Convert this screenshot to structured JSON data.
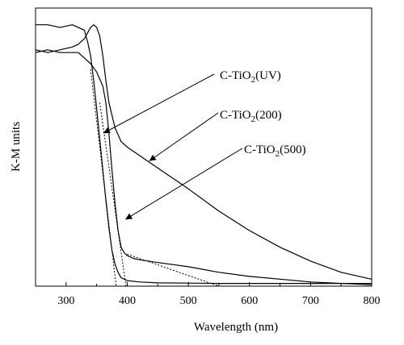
{
  "chart_data": {
    "type": "line",
    "xlabel": "Wavelength (nm)",
    "ylabel": "K-M units",
    "xlim": [
      250,
      800
    ],
    "ylim": [
      0,
      1
    ],
    "x_ticks": [
      300,
      400,
      500,
      600,
      700,
      800
    ],
    "x_tick_labels": [
      "300",
      "400",
      "500",
      "600",
      "700",
      "800"
    ],
    "y_ticks": [],
    "grid": false,
    "legend": "none",
    "series": [
      {
        "x": [
          250,
          270,
          290,
          310,
          320,
          330,
          340,
          345,
          350,
          355,
          360,
          365,
          370,
          380,
          390,
          400,
          420,
          440,
          460,
          480,
          500,
          550,
          600,
          650,
          700,
          750,
          800
        ],
        "y": [
          0.85,
          0.84,
          0.85,
          0.86,
          0.87,
          0.89,
          0.93,
          0.94,
          0.93,
          0.9,
          0.83,
          0.74,
          0.66,
          0.57,
          0.52,
          0.5,
          0.47,
          0.44,
          0.41,
          0.38,
          0.35,
          0.27,
          0.2,
          0.14,
          0.09,
          0.05,
          0.025
        ],
        "color": "#000000"
      },
      {
        "x": [
          250,
          270,
          290,
          310,
          320,
          330,
          335,
          340,
          345,
          350,
          355,
          360,
          365,
          370,
          375,
          380,
          385,
          390,
          400,
          420,
          450,
          500,
          550,
          600,
          700,
          800
        ],
        "y": [
          0.94,
          0.94,
          0.93,
          0.94,
          0.93,
          0.92,
          0.88,
          0.83,
          0.74,
          0.64,
          0.53,
          0.42,
          0.31,
          0.21,
          0.13,
          0.08,
          0.05,
          0.03,
          0.02,
          0.015,
          0.012,
          0.011,
          0.01,
          0.01,
          0.01,
          0.01
        ],
        "color": "#000000"
      },
      {
        "x": [
          250,
          270,
          290,
          310,
          320,
          330,
          340,
          350,
          360,
          365,
          370,
          375,
          380,
          385,
          390,
          395,
          400,
          410,
          420,
          450,
          500,
          550,
          600,
          700,
          800
        ],
        "y": [
          0.84,
          0.85,
          0.84,
          0.84,
          0.84,
          0.82,
          0.8,
          0.77,
          0.72,
          0.66,
          0.55,
          0.42,
          0.3,
          0.2,
          0.14,
          0.12,
          0.11,
          0.1,
          0.095,
          0.085,
          0.07,
          0.05,
          0.035,
          0.015,
          0.005
        ],
        "color": "#000000"
      }
    ],
    "tangent_lines": [
      {
        "x": [
          340,
          382
        ],
        "y": [
          0.78,
          0.0
        ]
      },
      {
        "x": [
          355,
          398
        ],
        "y": [
          0.66,
          0.0
        ]
      },
      {
        "x": [
          400,
          550
        ],
        "y": [
          0.115,
          0.0
        ]
      }
    ],
    "annotations": [
      {
        "label_prefix": "C-TiO",
        "label_sub": "2",
        "label_suffix": "(UV)",
        "arrow_to": [
          361,
          0.55
        ]
      },
      {
        "label_prefix": "C-TiO",
        "label_sub": "2",
        "label_suffix": "(200)",
        "arrow_to": [
          436,
          0.45
        ]
      },
      {
        "label_prefix": "C-TiO",
        "label_sub": "2",
        "label_suffix": "(500)",
        "arrow_to": [
          397,
          0.24
        ]
      }
    ]
  }
}
